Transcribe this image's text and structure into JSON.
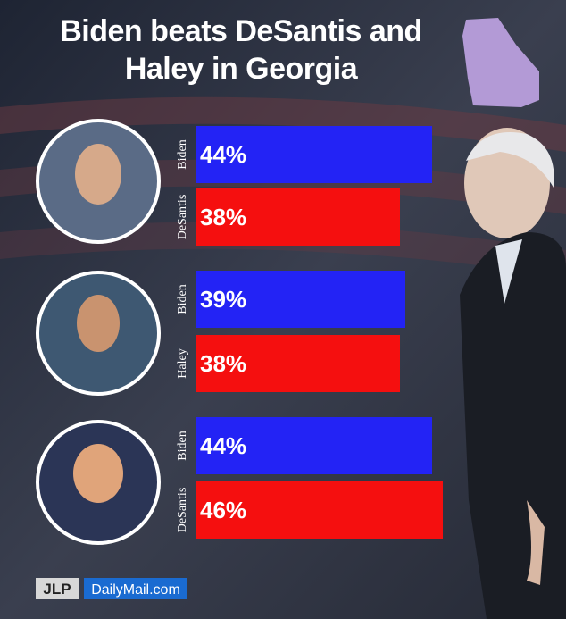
{
  "chart_data": {
    "type": "bar",
    "title": "Biden beats DeSantis and Haley in Georgia",
    "categories": [
      "Biden",
      "DeSantis",
      "Biden",
      "Haley",
      "Biden",
      "DeSantis"
    ],
    "values": [
      44,
      38,
      39,
      38,
      44,
      46
    ],
    "value_labels": [
      "44%",
      "38%",
      "39%",
      "38%",
      "44%",
      "46%"
    ],
    "colors": [
      "#2323f5",
      "#f50f0f",
      "#2323f5",
      "#f50f0f",
      "#2323f5",
      "#f50f0f"
    ]
  },
  "logos": [
    "JLP",
    "DailyMail.com"
  ]
}
